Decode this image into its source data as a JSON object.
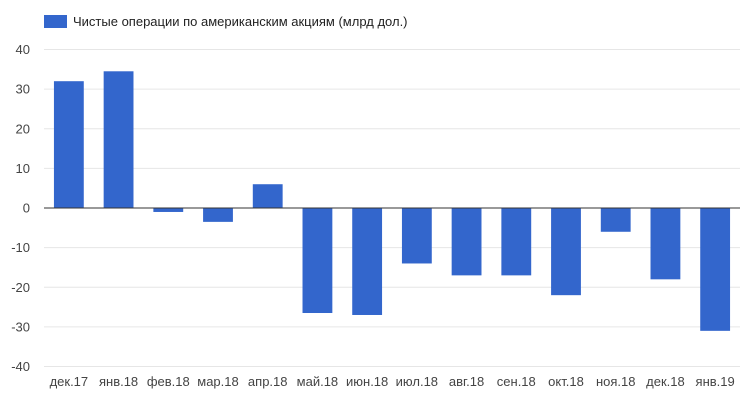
{
  "chart_data": {
    "type": "bar",
    "categories": [
      "дек.17",
      "янв.18",
      "фев.18",
      "мар.18",
      "апр.18",
      "май.18",
      "июн.18",
      "июл.18",
      "авг.18",
      "сен.18",
      "окт.18",
      "ноя.18",
      "дек.18",
      "янв.19"
    ],
    "series": [
      {
        "name": "Чистые операции по американским акциям (млрд дол.)",
        "values": [
          32,
          34.5,
          -1,
          -3.5,
          6,
          -26.5,
          -27,
          -14,
          -17,
          -17,
          -22,
          -6,
          -18,
          -31
        ]
      }
    ],
    "ylim": [
      -40,
      40
    ],
    "yticks": [
      40,
      30,
      20,
      10,
      0,
      -10,
      -20,
      -30,
      -40
    ],
    "grid": true,
    "legend_position": "top-left",
    "colors": {
      "bar": "#3366cc",
      "grid": "#e6e6e6",
      "zero_line": "#333333"
    }
  }
}
